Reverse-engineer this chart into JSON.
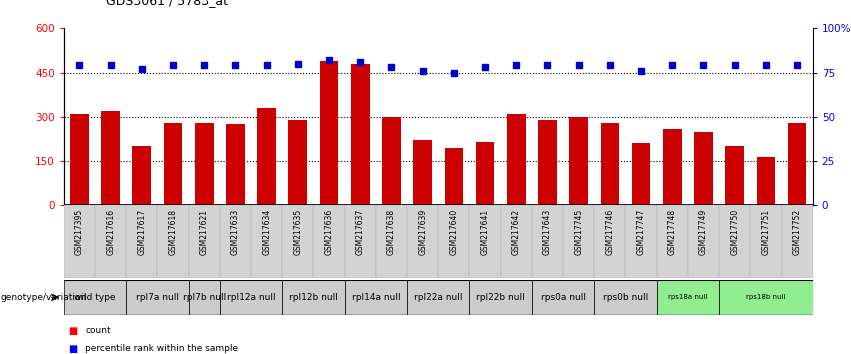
{
  "title": "GDS3061 / 5783_at",
  "categories": [
    "GSM217395",
    "GSM217616",
    "GSM217617",
    "GSM217618",
    "GSM217621",
    "GSM217633",
    "GSM217634",
    "GSM217635",
    "GSM217636",
    "GSM217637",
    "GSM217638",
    "GSM217639",
    "GSM217640",
    "GSM217641",
    "GSM217642",
    "GSM217643",
    "GSM217745",
    "GSM217746",
    "GSM217747",
    "GSM217748",
    "GSM217749",
    "GSM217750",
    "GSM217751",
    "GSM217752"
  ],
  "counts": [
    310,
    320,
    200,
    280,
    280,
    275,
    330,
    290,
    490,
    480,
    300,
    220,
    195,
    215,
    310,
    290,
    300,
    280,
    210,
    260,
    250,
    200,
    165,
    280
  ],
  "percentile_ranks": [
    79,
    79,
    77,
    79,
    79,
    79,
    79,
    80,
    82,
    81,
    78,
    76,
    75,
    78,
    79,
    79,
    79,
    79,
    76,
    79,
    79,
    79,
    79,
    79
  ],
  "genotype_groups": [
    {
      "label": "wild type",
      "indices": [
        0,
        1
      ],
      "color": "#cccccc"
    },
    {
      "label": "rpl7a null",
      "indices": [
        2,
        3
      ],
      "color": "#cccccc"
    },
    {
      "label": "rpl7b null",
      "indices": [
        4
      ],
      "color": "#cccccc"
    },
    {
      "label": "rpl12a null",
      "indices": [
        5,
        6
      ],
      "color": "#cccccc"
    },
    {
      "label": "rpl12b null",
      "indices": [
        7,
        8
      ],
      "color": "#cccccc"
    },
    {
      "label": "rpl14a null",
      "indices": [
        9,
        10
      ],
      "color": "#cccccc"
    },
    {
      "label": "rpl22a null",
      "indices": [
        11,
        12
      ],
      "color": "#cccccc"
    },
    {
      "label": "rpl22b null",
      "indices": [
        13,
        14
      ],
      "color": "#cccccc"
    },
    {
      "label": "rps0a null",
      "indices": [
        15,
        16
      ],
      "color": "#cccccc"
    },
    {
      "label": "rps0b null",
      "indices": [
        17,
        18
      ],
      "color": "#cccccc"
    },
    {
      "label": "rps18a null",
      "indices": [
        19,
        20
      ],
      "color": "#90ee90"
    },
    {
      "label": "rps18b null",
      "indices": [
        21,
        22,
        23
      ],
      "color": "#90ee90"
    }
  ],
  "bar_color": "#cc0000",
  "dot_color": "#0000cc",
  "left_ylim": [
    0,
    600
  ],
  "right_ylim": [
    0,
    100
  ],
  "left_yticks": [
    0,
    150,
    300,
    450,
    600
  ],
  "left_yticklabels": [
    "0",
    "150",
    "300",
    "450",
    "600"
  ],
  "right_yticks": [
    0,
    25,
    50,
    75,
    100
  ],
  "right_yticklabels": [
    "0",
    "25",
    "50",
    "75",
    "100%"
  ],
  "hline_values": [
    150,
    300,
    450
  ],
  "background_color": "#ffffff",
  "label_count": "count",
  "label_percentile": "percentile rank within the sample",
  "genotype_label": "genotype/variation"
}
